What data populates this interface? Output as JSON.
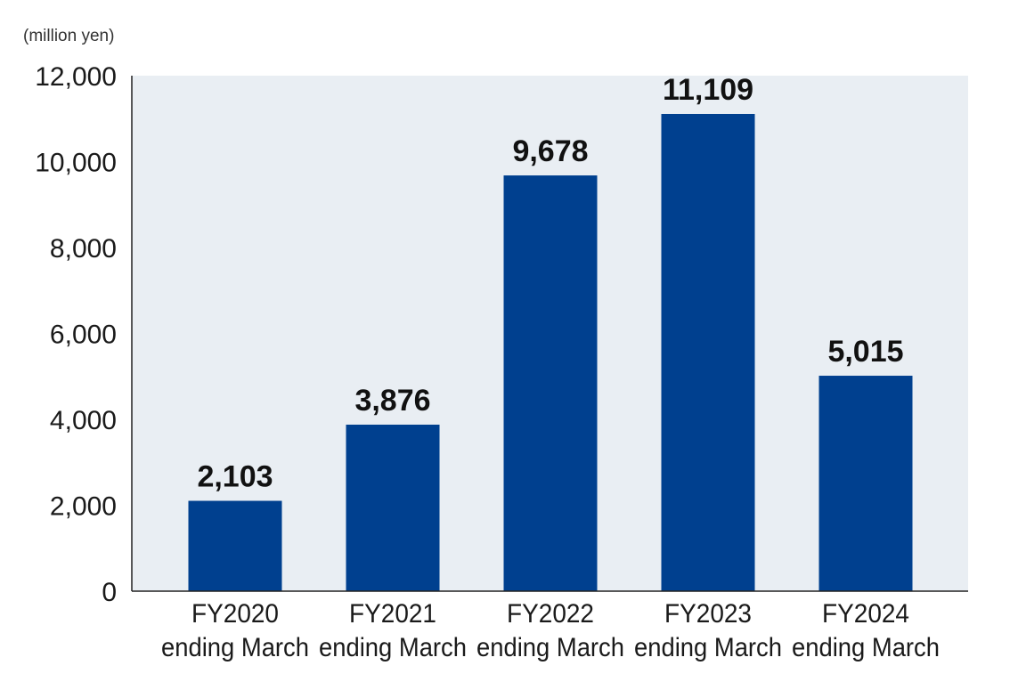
{
  "chart_data": {
    "type": "bar",
    "unit_label": "(million yen)",
    "categories": [
      [
        "FY2020",
        "ending March"
      ],
      [
        "FY2021",
        "ending March"
      ],
      [
        "FY2022",
        "ending March"
      ],
      [
        "FY2023",
        "ending March"
      ],
      [
        "FY2024",
        "ending March"
      ]
    ],
    "values": [
      2103,
      3876,
      9678,
      11109,
      5015
    ],
    "value_labels": [
      "2,103",
      "3,876",
      "9,678",
      "11,109",
      "5,015"
    ],
    "ylim": [
      0,
      12000
    ],
    "yticks": [
      0,
      2000,
      4000,
      6000,
      8000,
      10000,
      12000
    ],
    "ytick_labels": [
      "0",
      "2,000",
      "4,000",
      "6,000",
      "8,000",
      "10,000",
      "12,000"
    ],
    "colors": {
      "bar": "#00408f",
      "plot_background": "#e9eef3",
      "axis": "#222222"
    },
    "grid": false,
    "legend": "none"
  }
}
